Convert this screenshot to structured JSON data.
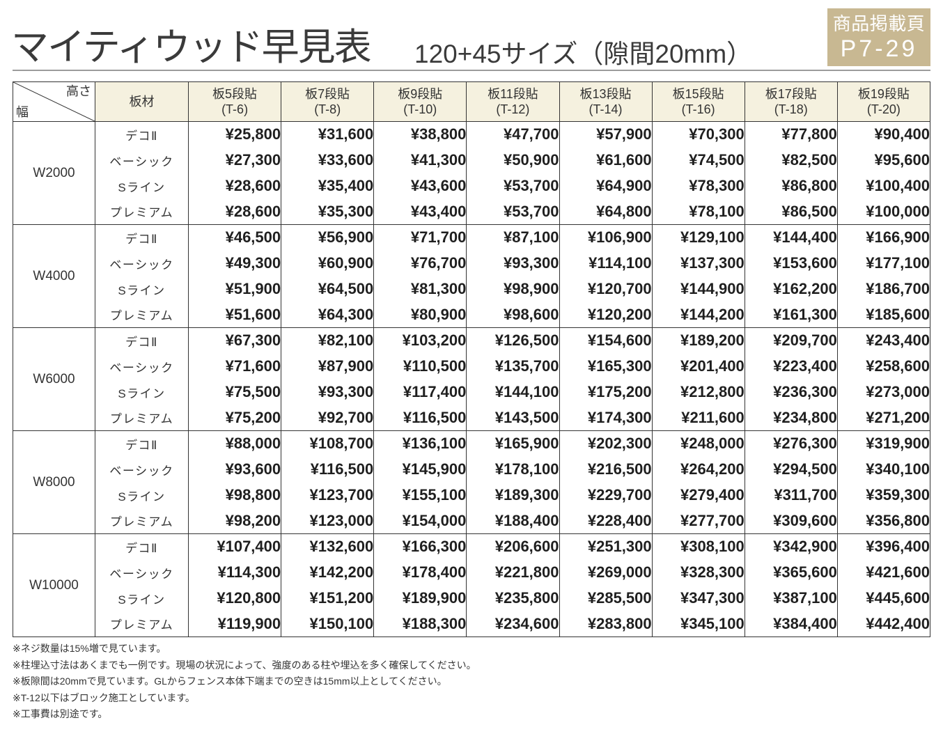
{
  "title": {
    "main": "マイティウッド早見表",
    "sub": "120+45サイズ（隙間20mm）"
  },
  "badge": {
    "label": "商品掲載頁",
    "pages": "P7-29"
  },
  "colors": {
    "badge_bg": "#c8b892",
    "header_bg": "#f5f1df",
    "rule": "#9b9b9b",
    "grid": "#333333"
  },
  "table": {
    "corner": {
      "height_label": "高さ",
      "width_label": "幅"
    },
    "material_header": "板材",
    "columns": [
      {
        "label": "板5段貼",
        "code": "(T-6)"
      },
      {
        "label": "板7段貼",
        "code": "(T-8)"
      },
      {
        "label": "板9段貼",
        "code": "(T-10)"
      },
      {
        "label": "板11段貼",
        "code": "(T-12)"
      },
      {
        "label": "板13段貼",
        "code": "(T-14)"
      },
      {
        "label": "板15段貼",
        "code": "(T-16)"
      },
      {
        "label": "板17段貼",
        "code": "(T-18)"
      },
      {
        "label": "板19段貼",
        "code": "(T-20)"
      }
    ],
    "groups": [
      {
        "width": "W2000",
        "rows": [
          {
            "material": "デコⅡ",
            "prices": [
              "¥25,800",
              "¥31,600",
              "¥38,800",
              "¥47,700",
              "¥57,900",
              "¥70,300",
              "¥77,800",
              "¥90,400"
            ]
          },
          {
            "material": "ベーシック",
            "prices": [
              "¥27,300",
              "¥33,600",
              "¥41,300",
              "¥50,900",
              "¥61,600",
              "¥74,500",
              "¥82,500",
              "¥95,600"
            ]
          },
          {
            "material": "Sライン",
            "prices": [
              "¥28,600",
              "¥35,400",
              "¥43,600",
              "¥53,700",
              "¥64,900",
              "¥78,300",
              "¥86,800",
              "¥100,400"
            ]
          },
          {
            "material": "プレミアム",
            "prices": [
              "¥28,600",
              "¥35,300",
              "¥43,400",
              "¥53,700",
              "¥64,800",
              "¥78,100",
              "¥86,500",
              "¥100,000"
            ]
          }
        ]
      },
      {
        "width": "W4000",
        "rows": [
          {
            "material": "デコⅡ",
            "prices": [
              "¥46,500",
              "¥56,900",
              "¥71,700",
              "¥87,100",
              "¥106,900",
              "¥129,100",
              "¥144,400",
              "¥166,900"
            ]
          },
          {
            "material": "ベーシック",
            "prices": [
              "¥49,300",
              "¥60,900",
              "¥76,700",
              "¥93,300",
              "¥114,100",
              "¥137,300",
              "¥153,600",
              "¥177,100"
            ]
          },
          {
            "material": "Sライン",
            "prices": [
              "¥51,900",
              "¥64,500",
              "¥81,300",
              "¥98,900",
              "¥120,700",
              "¥144,900",
              "¥162,200",
              "¥186,700"
            ]
          },
          {
            "material": "プレミアム",
            "prices": [
              "¥51,600",
              "¥64,300",
              "¥80,900",
              "¥98,600",
              "¥120,200",
              "¥144,200",
              "¥161,300",
              "¥185,600"
            ]
          }
        ]
      },
      {
        "width": "W6000",
        "rows": [
          {
            "material": "デコⅡ",
            "prices": [
              "¥67,300",
              "¥82,100",
              "¥103,200",
              "¥126,500",
              "¥154,600",
              "¥189,200",
              "¥209,700",
              "¥243,400"
            ]
          },
          {
            "material": "ベーシック",
            "prices": [
              "¥71,600",
              "¥87,900",
              "¥110,500",
              "¥135,700",
              "¥165,300",
              "¥201,400",
              "¥223,400",
              "¥258,600"
            ]
          },
          {
            "material": "Sライン",
            "prices": [
              "¥75,500",
              "¥93,300",
              "¥117,400",
              "¥144,100",
              "¥175,200",
              "¥212,800",
              "¥236,300",
              "¥273,000"
            ]
          },
          {
            "material": "プレミアム",
            "prices": [
              "¥75,200",
              "¥92,700",
              "¥116,500",
              "¥143,500",
              "¥174,300",
              "¥211,600",
              "¥234,800",
              "¥271,200"
            ]
          }
        ]
      },
      {
        "width": "W8000",
        "rows": [
          {
            "material": "デコⅡ",
            "prices": [
              "¥88,000",
              "¥108,700",
              "¥136,100",
              "¥165,900",
              "¥202,300",
              "¥248,000",
              "¥276,300",
              "¥319,900"
            ]
          },
          {
            "material": "ベーシック",
            "prices": [
              "¥93,600",
              "¥116,500",
              "¥145,900",
              "¥178,100",
              "¥216,500",
              "¥264,200",
              "¥294,500",
              "¥340,100"
            ]
          },
          {
            "material": "Sライン",
            "prices": [
              "¥98,800",
              "¥123,700",
              "¥155,100",
              "¥189,300",
              "¥229,700",
              "¥279,400",
              "¥311,700",
              "¥359,300"
            ]
          },
          {
            "material": "プレミアム",
            "prices": [
              "¥98,200",
              "¥123,000",
              "¥154,000",
              "¥188,400",
              "¥228,400",
              "¥277,700",
              "¥309,600",
              "¥356,800"
            ]
          }
        ]
      },
      {
        "width": "W10000",
        "rows": [
          {
            "material": "デコⅡ",
            "prices": [
              "¥107,400",
              "¥132,600",
              "¥166,300",
              "¥206,600",
              "¥251,300",
              "¥308,100",
              "¥342,900",
              "¥396,400"
            ]
          },
          {
            "material": "ベーシック",
            "prices": [
              "¥114,300",
              "¥142,200",
              "¥178,400",
              "¥221,800",
              "¥269,000",
              "¥328,300",
              "¥365,600",
              "¥421,600"
            ]
          },
          {
            "material": "Sライン",
            "prices": [
              "¥120,800",
              "¥151,200",
              "¥189,900",
              "¥235,800",
              "¥285,500",
              "¥347,300",
              "¥387,100",
              "¥445,600"
            ]
          },
          {
            "material": "プレミアム",
            "prices": [
              "¥119,900",
              "¥150,100",
              "¥188,300",
              "¥234,600",
              "¥283,800",
              "¥345,100",
              "¥384,400",
              "¥442,400"
            ]
          }
        ]
      }
    ]
  },
  "notes": [
    "※ネジ数量は15%増で見ています。",
    "※柱埋込寸法はあくまでも一例です。現場の状況によって、強度のある柱や埋込を多く確保してください。",
    "※板隙間は20mmで見ています。GLからフェンス本体下端までの空きは15mm以上としてください。",
    "※T-12以下はブロック施工としています。",
    "※工事費は別途です。"
  ]
}
